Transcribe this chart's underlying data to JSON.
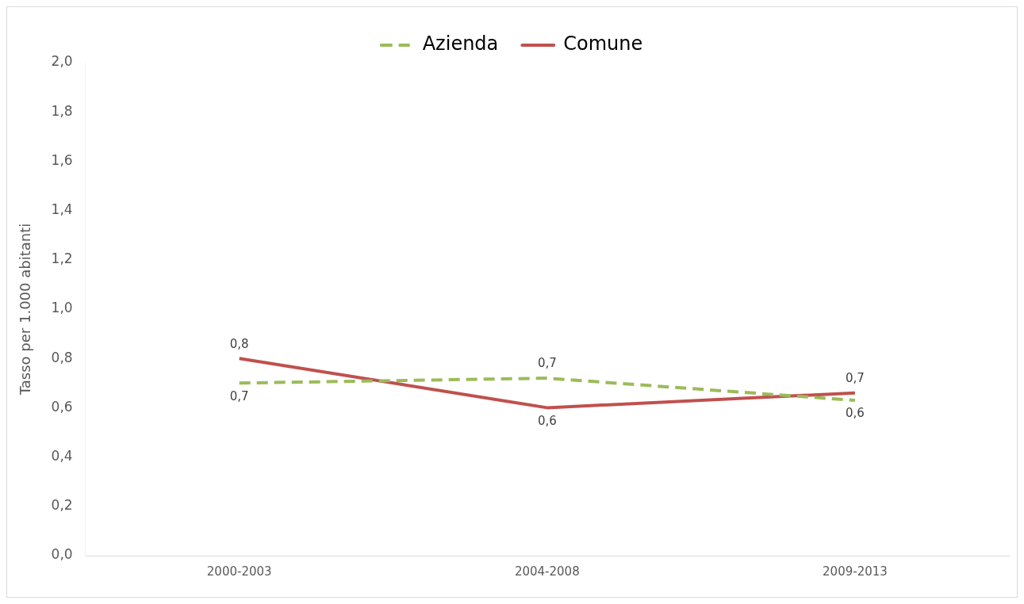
{
  "chart_data": {
    "type": "line",
    "ylabel": "Tasso per 1.000 abitanti",
    "categories": [
      "2000-2003",
      "2004-2008",
      "2009-2013"
    ],
    "series": [
      {
        "name": "Azienda",
        "color": "#9bbb59",
        "line_style": "dashed",
        "values": [
          0.7,
          0.72,
          0.63
        ],
        "value_labels": [
          "0,7",
          "0,7",
          "0,6"
        ]
      },
      {
        "name": "Comune",
        "color": "#c0504d",
        "line_style": "solid",
        "values": [
          0.8,
          0.6,
          0.66
        ],
        "value_labels": [
          "0,8",
          "0,6",
          "0,7"
        ]
      }
    ],
    "ylim": [
      0,
      2
    ],
    "yticks": [
      {
        "value": 0,
        "label": "0,0"
      },
      {
        "value": 0.2,
        "label": "0,2"
      },
      {
        "value": 0.4,
        "label": "0,4"
      },
      {
        "value": 0.6,
        "label": "0,6"
      },
      {
        "value": 0.8,
        "label": "0,8"
      },
      {
        "value": 1,
        "label": "1,0"
      },
      {
        "value": 1.2,
        "label": "1,2"
      },
      {
        "value": 1.4,
        "label": "1,4"
      },
      {
        "value": 1.6,
        "label": "1,6"
      },
      {
        "value": 1.8,
        "label": "1,8"
      },
      {
        "value": 2,
        "label": "2,0"
      }
    ],
    "grid": false,
    "legend": "top",
    "marker": "none"
  }
}
